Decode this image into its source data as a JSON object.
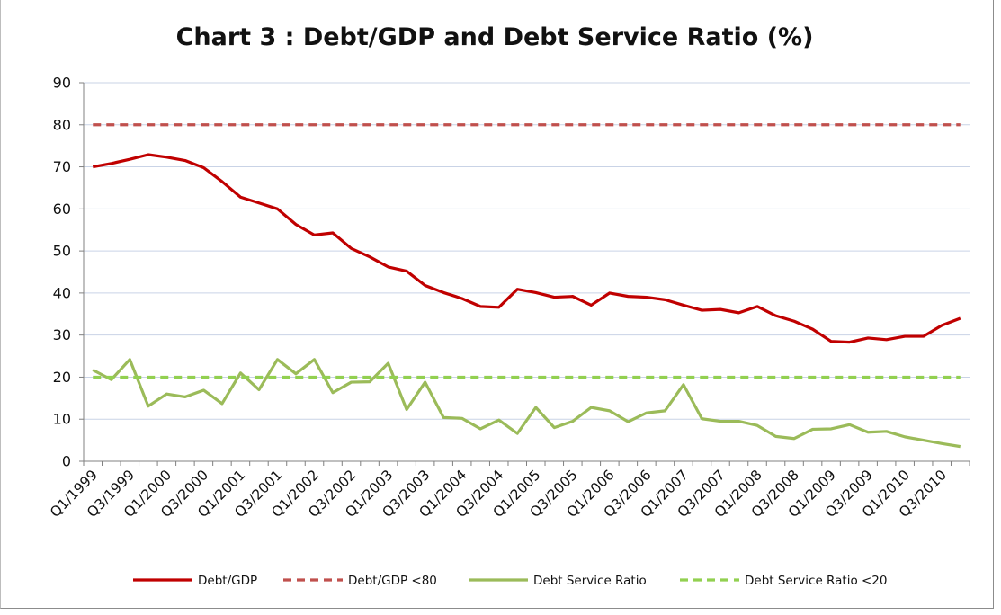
{
  "chart_data": {
    "type": "line",
    "title": "Chart 3 : Debt/GDP and Debt Service Ratio (%)",
    "ylim": [
      0,
      90
    ],
    "yticks": [
      0,
      10,
      20,
      30,
      40,
      50,
      60,
      70,
      80,
      90
    ],
    "grid": true,
    "legend_position": "bottom",
    "x": [
      "Q1/1999",
      "Q2/1999",
      "Q3/1999",
      "Q4/1999",
      "Q1/2000",
      "Q2/2000",
      "Q3/2000",
      "Q4/2000",
      "Q1/2001",
      "Q2/2001",
      "Q3/2001",
      "Q4/2001",
      "Q1/2002",
      "Q2/2002",
      "Q3/2002",
      "Q4/2002",
      "Q1/2003",
      "Q2/2003",
      "Q3/2003",
      "Q4/2003",
      "Q1/2004",
      "Q2/2004",
      "Q3/2004",
      "Q4/2004",
      "Q1/2005",
      "Q2/2005",
      "Q3/2005",
      "Q4/2005",
      "Q1/2006",
      "Q2/2006",
      "Q3/2006",
      "Q4/2006",
      "Q1/2007",
      "Q2/2007",
      "Q3/2007",
      "Q4/2007",
      "Q1/2008",
      "Q2/2008",
      "Q3/2008",
      "Q4/2008",
      "Q1/2009",
      "Q2/2009",
      "Q3/2009",
      "Q4/2009",
      "Q1/2010",
      "Q2/2010",
      "Q3/2010",
      "Q4/2010"
    ],
    "xtick_labels": [
      "Q1/1999",
      "Q3/1999",
      "Q1/2000",
      "Q3/2000",
      "Q1/2001",
      "Q3/2001",
      "Q1/2002",
      "Q3/2002",
      "Q1/2003",
      "Q3/2003",
      "Q1/2004",
      "Q3/2004",
      "Q1/2005",
      "Q3/2005",
      "Q1/2006",
      "Q3/2006",
      "Q1/2007",
      "Q3/2007",
      "Q1/2008",
      "Q3/2008",
      "Q1/2009",
      "Q3/2009",
      "Q1/2010",
      "Q3/2010"
    ],
    "series": [
      {
        "name": "Debt/GDP",
        "color": "#c00000",
        "dash": "solid",
        "values": [
          70,
          70.8,
          71.8,
          72.9,
          72.3,
          71.5,
          69.8,
          66.5,
          62.8,
          61.4,
          60,
          56.3,
          53.8,
          54.3,
          50.6,
          48.6,
          46.2,
          45.2,
          41.8,
          40.1,
          38.7,
          36.8,
          36.6,
          40.9,
          40.1,
          39,
          39.2,
          37.1,
          40,
          39.2,
          39,
          38.4,
          37.1,
          35.9,
          36.1,
          35.3,
          36.8,
          34.6,
          33.3,
          31.4,
          28.5,
          28.3,
          29.3,
          28.9,
          29.7,
          29.7,
          32.3,
          34
        ]
      },
      {
        "name": "Debt/GDP <80",
        "color": "#c0504d",
        "dash": "dashed",
        "values": [
          80,
          80,
          80,
          80,
          80,
          80,
          80,
          80,
          80,
          80,
          80,
          80,
          80,
          80,
          80,
          80,
          80,
          80,
          80,
          80,
          80,
          80,
          80,
          80,
          80,
          80,
          80,
          80,
          80,
          80,
          80,
          80,
          80,
          80,
          80,
          80,
          80,
          80,
          80,
          80,
          80,
          80,
          80,
          80,
          80,
          80,
          80,
          80
        ]
      },
      {
        "name": "Debt Service Ratio",
        "color": "#9bbb59",
        "dash": "solid",
        "values": [
          21.7,
          19.4,
          24.2,
          13.1,
          16,
          15.3,
          16.9,
          13.7,
          21,
          17,
          24.2,
          20.8,
          24.2,
          16.3,
          18.8,
          18.9,
          23.3,
          12.3,
          18.8,
          10.4,
          10.2,
          7.7,
          9.8,
          6.6,
          12.8,
          8,
          9.5,
          12.8,
          12,
          9.4,
          11.5,
          12,
          18.2,
          10.1,
          9.5,
          9.5,
          8.5,
          5.9,
          5.4,
          7.6,
          7.7,
          8.7,
          6.9,
          7.1,
          5.8,
          5,
          4.2,
          3.5
        ]
      },
      {
        "name": "Debt Service Ratio <20",
        "color": "#92d050",
        "dash": "dashed",
        "values": [
          20,
          20,
          20,
          20,
          20,
          20,
          20,
          20,
          20,
          20,
          20,
          20,
          20,
          20,
          20,
          20,
          20,
          20,
          20,
          20,
          20,
          20,
          20,
          20,
          20,
          20,
          20,
          20,
          20,
          20,
          20,
          20,
          20,
          20,
          20,
          20,
          20,
          20,
          20,
          20,
          20,
          20,
          20,
          20,
          20,
          20,
          20,
          20
        ]
      }
    ]
  }
}
